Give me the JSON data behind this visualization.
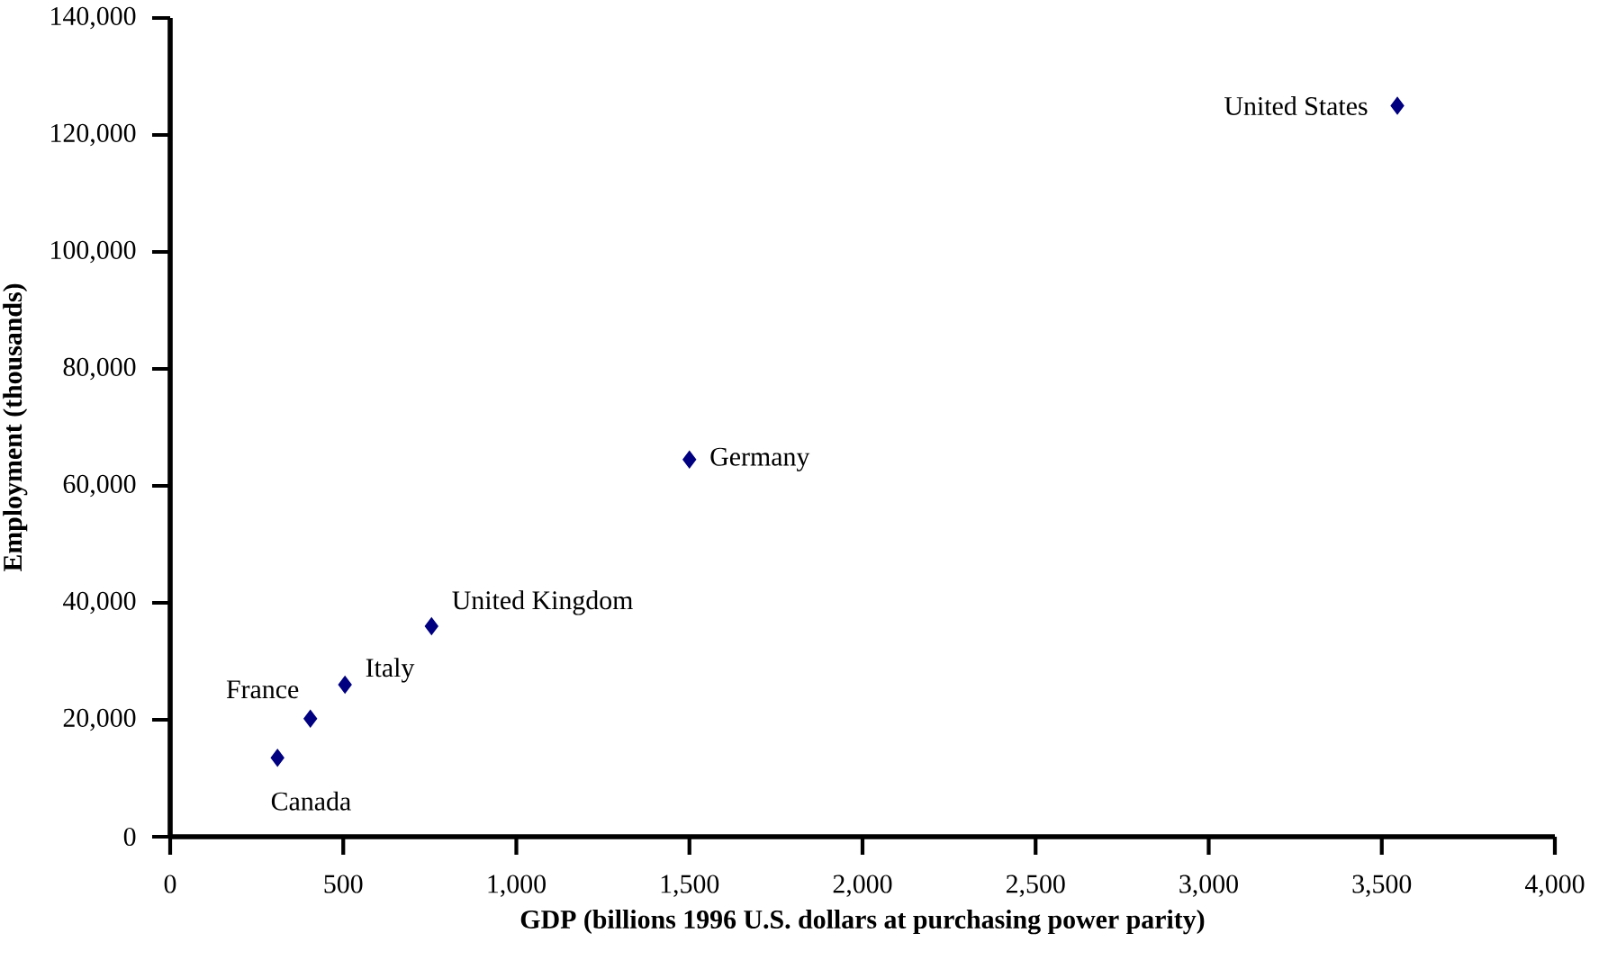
{
  "chart_data": {
    "type": "scatter",
    "xlabel": "GDP (billions 1996 U.S. dollars at purchasing power parity)",
    "ylabel": "Employment (thousands)",
    "series": [
      {
        "color": "#000080",
        "x": [
          310,
          405,
          505,
          755,
          1500,
          3545
        ],
        "values": [
          13500,
          20200,
          26000,
          36000,
          64500,
          125000
        ]
      }
    ],
    "marker": "diamond",
    "grid": false,
    "xlim": [
      0,
      4000
    ],
    "xticks": [
      {
        "value": 0,
        "label": "0"
      },
      {
        "value": 500,
        "label": "500"
      },
      {
        "value": 1000,
        "label": "1,000"
      },
      {
        "value": 1500,
        "label": "1,500"
      },
      {
        "value": 2000,
        "label": "2,000"
      },
      {
        "value": 2500,
        "label": "2,500"
      },
      {
        "value": 3000,
        "label": "3,000"
      },
      {
        "value": 3500,
        "label": "3,500"
      },
      {
        "value": 4000,
        "label": "4,000"
      }
    ],
    "ylim": [
      0,
      140000
    ],
    "yticks": [
      {
        "value": 0,
        "label": "0"
      },
      {
        "value": 20000,
        "label": "20,000"
      },
      {
        "value": 40000,
        "label": "40,000"
      },
      {
        "value": 60000,
        "label": "60,000"
      },
      {
        "value": 80000,
        "label": "80,000"
      },
      {
        "value": 100000,
        "label": "100,000"
      },
      {
        "value": 120000,
        "label": "120,000"
      },
      {
        "value": 140000,
        "label": "140,000"
      }
    ],
    "annotations": [
      {
        "text": "Canada",
        "x": 310,
        "y": 13500
      },
      {
        "text": "France",
        "x": 405,
        "y": 20200
      },
      {
        "text": "Italy",
        "x": 505,
        "y": 26000
      },
      {
        "text": "United Kingdom",
        "x": 755,
        "y": 36000
      },
      {
        "text": "Germany",
        "x": 1500,
        "y": 64500
      },
      {
        "text": "United States",
        "x": 3545,
        "y": 125000
      }
    ]
  }
}
